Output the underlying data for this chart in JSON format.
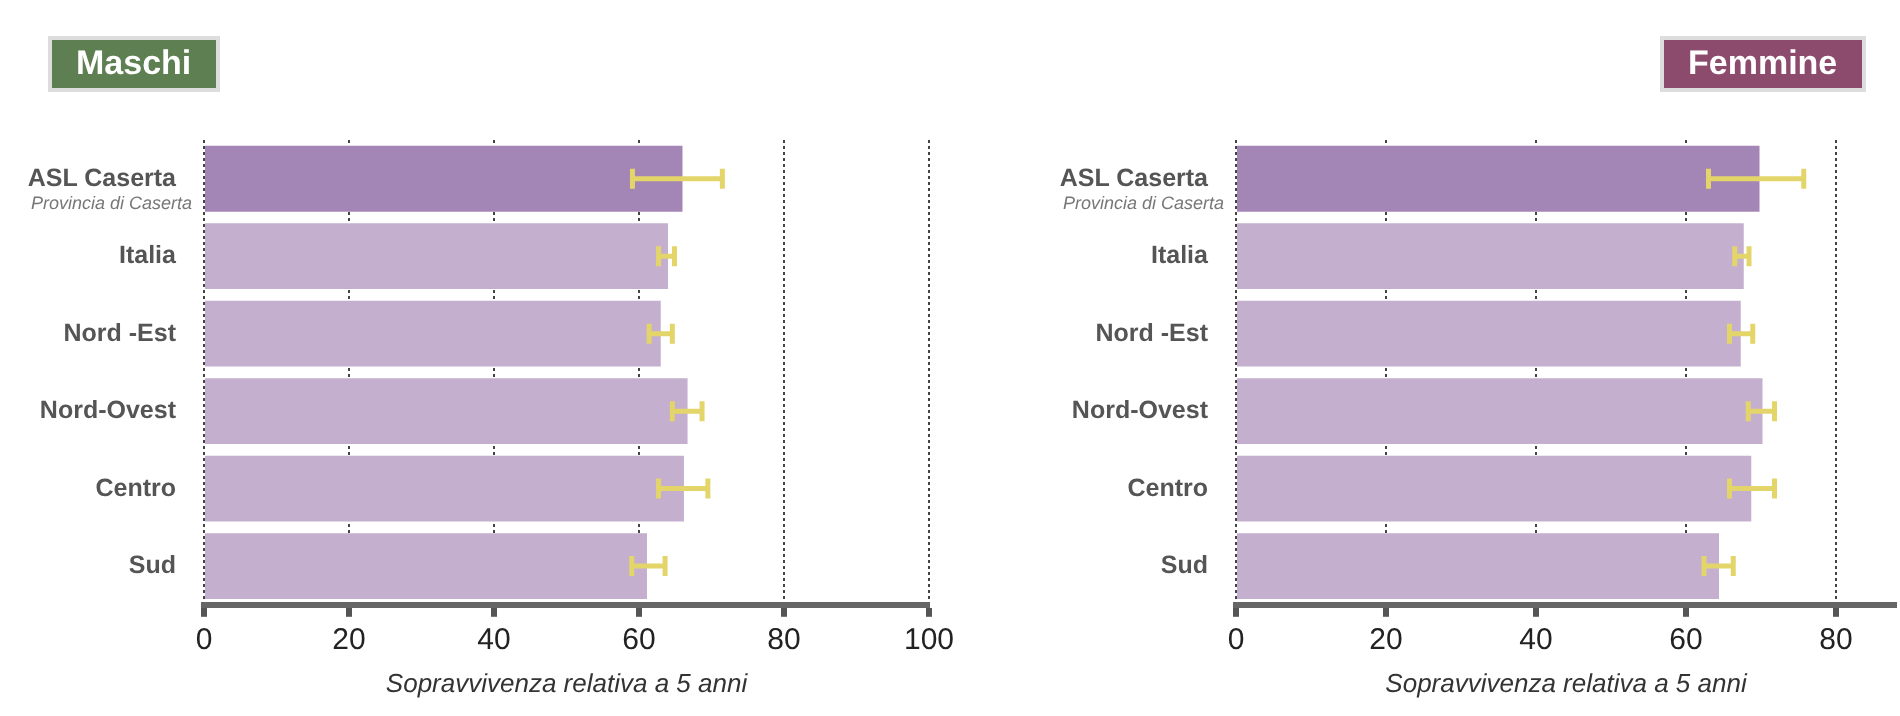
{
  "chart_data": [
    {
      "type": "bar",
      "orientation": "horizontal",
      "title": "Maschi",
      "xlabel": "Sopravvivenza relativa a 5 anni",
      "categories": [
        "ASL Caserta",
        "Italia",
        "Nord -Est",
        "Nord-Ovest",
        "Centro",
        "Sud"
      ],
      "annotations": [
        "Provincia di Caserta"
      ],
      "values": [
        66.0,
        64.0,
        63.0,
        66.7,
        66.2,
        61.1
      ],
      "errors": [
        [
          59.1,
          71.5
        ],
        [
          62.7,
          64.9
        ],
        [
          61.4,
          64.6
        ],
        [
          64.6,
          68.7
        ],
        [
          62.7,
          69.5
        ],
        [
          59.0,
          63.6
        ]
      ],
      "colors": [
        "#a386b5",
        "#c4afce",
        "#c4afce",
        "#c4afce",
        "#c4afce",
        "#c4afce"
      ],
      "xlim": [
        0,
        100
      ],
      "xticks": [
        0,
        20,
        40,
        60,
        80,
        100
      ],
      "grid": "x"
    },
    {
      "type": "bar",
      "orientation": "horizontal",
      "title": "Femmine",
      "xlabel": "Sopravvivenza relativa a 5 anni",
      "categories": [
        "ASL Caserta",
        "Italia",
        "Nord -Est",
        "Nord-Ovest",
        "Centro",
        "Sud"
      ],
      "annotations": [
        "Provincia di Caserta"
      ],
      "values": [
        69.8,
        67.7,
        67.3,
        70.2,
        68.7,
        64.4
      ],
      "errors": [
        [
          63.0,
          75.7
        ],
        [
          66.5,
          68.4
        ],
        [
          65.8,
          68.9
        ],
        [
          68.3,
          71.8
        ],
        [
          65.8,
          71.8
        ],
        [
          62.4,
          66.3
        ]
      ],
      "colors": [
        "#a386b5",
        "#c4afce",
        "#c4afce",
        "#c4afce",
        "#c4afce",
        "#c4afce"
      ],
      "xlim": [
        0,
        88
      ],
      "xticks": [
        0,
        20,
        40,
        60,
        80
      ],
      "grid": "x"
    }
  ]
}
